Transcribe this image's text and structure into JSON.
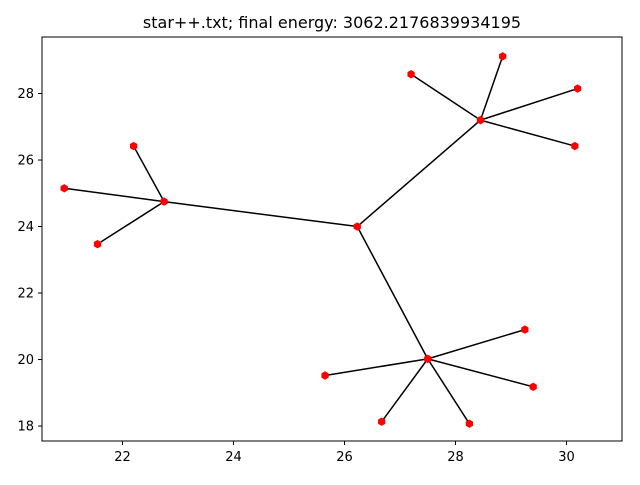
{
  "chart_data": {
    "type": "graph",
    "title": "star++.txt; final energy: 3062.2176839934195",
    "xlabel": "",
    "ylabel": "",
    "xlim": [
      20.55,
      31.0
    ],
    "ylim": [
      17.55,
      29.7
    ],
    "xticks": [
      22,
      24,
      26,
      28,
      30
    ],
    "yticks": [
      18,
      20,
      22,
      24,
      26,
      28
    ],
    "grid": false,
    "nodes": [
      {
        "id": "center",
        "x": 26.23,
        "y": 24.0
      },
      {
        "id": "hub-left",
        "x": 22.75,
        "y": 24.75
      },
      {
        "id": "hub-top-right",
        "x": 28.45,
        "y": 27.2
      },
      {
        "id": "hub-bottom",
        "x": 27.5,
        "y": 20.02
      },
      {
        "id": "leaf-1",
        "x": 20.95,
        "y": 25.15
      },
      {
        "id": "leaf-2",
        "x": 22.2,
        "y": 26.42
      },
      {
        "id": "leaf-3",
        "x": 21.55,
        "y": 23.47
      },
      {
        "id": "leaf-4",
        "x": 27.2,
        "y": 28.58
      },
      {
        "id": "leaf-5",
        "x": 28.85,
        "y": 29.12
      },
      {
        "id": "leaf-6",
        "x": 30.2,
        "y": 28.15
      },
      {
        "id": "leaf-7",
        "x": 30.15,
        "y": 26.42
      },
      {
        "id": "leaf-8",
        "x": 25.65,
        "y": 19.52
      },
      {
        "id": "leaf-9",
        "x": 26.67,
        "y": 18.13
      },
      {
        "id": "leaf-10",
        "x": 28.25,
        "y": 18.07
      },
      {
        "id": "leaf-11",
        "x": 29.25,
        "y": 20.9
      },
      {
        "id": "leaf-12",
        "x": 29.4,
        "y": 19.18
      }
    ],
    "edges": [
      [
        "center",
        "hub-left"
      ],
      [
        "center",
        "hub-top-right"
      ],
      [
        "center",
        "hub-bottom"
      ],
      [
        "hub-left",
        "leaf-1"
      ],
      [
        "hub-left",
        "leaf-2"
      ],
      [
        "hub-left",
        "leaf-3"
      ],
      [
        "hub-top-right",
        "leaf-4"
      ],
      [
        "hub-top-right",
        "leaf-5"
      ],
      [
        "hub-top-right",
        "leaf-6"
      ],
      [
        "hub-top-right",
        "leaf-7"
      ],
      [
        "hub-bottom",
        "leaf-8"
      ],
      [
        "hub-bottom",
        "leaf-9"
      ],
      [
        "hub-bottom",
        "leaf-10"
      ],
      [
        "hub-bottom",
        "leaf-11"
      ],
      [
        "hub-bottom",
        "leaf-12"
      ]
    ],
    "edge_color": "#000000",
    "node_color": "#ff0000",
    "axes_color": "#000000"
  }
}
